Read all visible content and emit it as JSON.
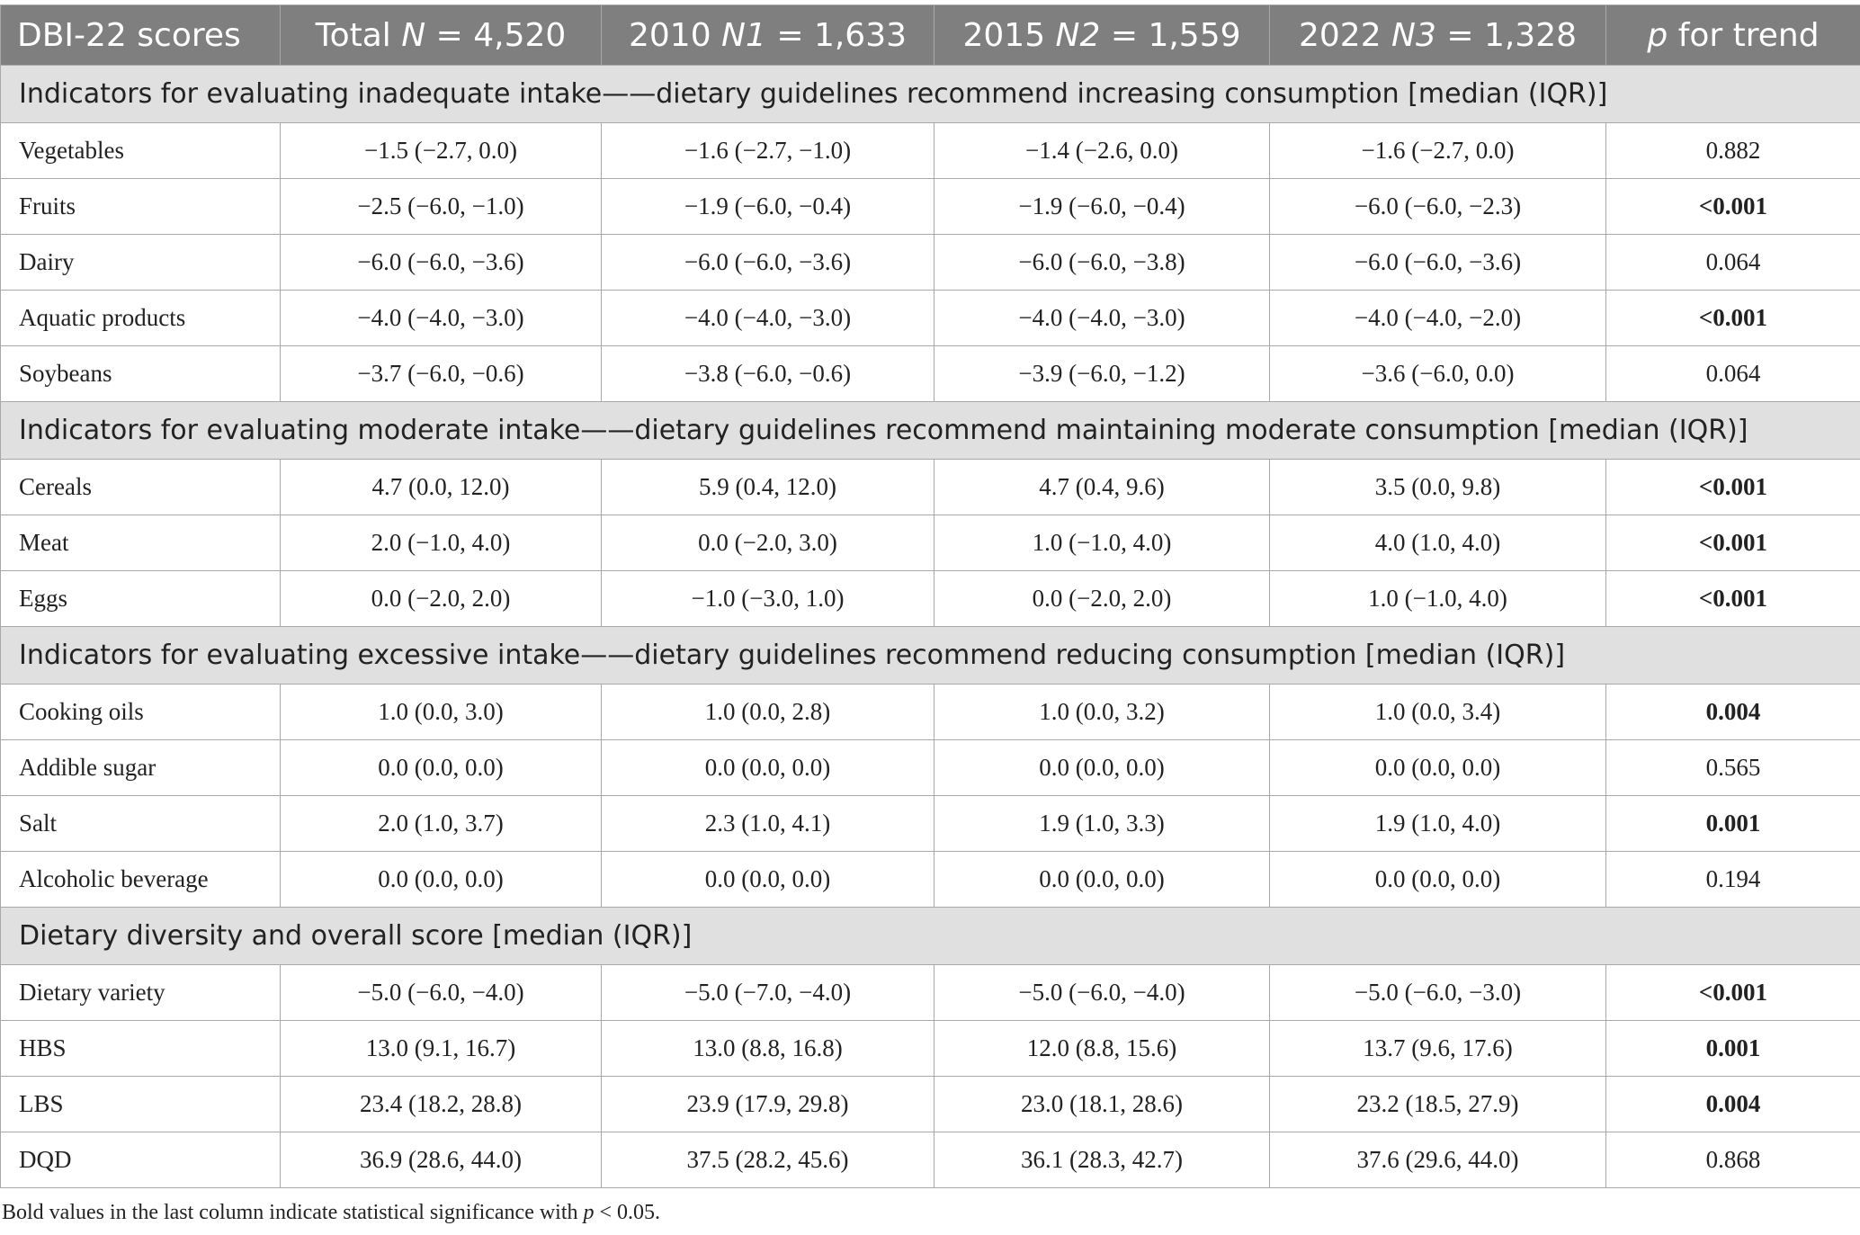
{
  "header": {
    "col0": "DBI-22 scores",
    "total_pre": "Total ",
    "total_var": "N",
    "total_post": " = 4,520",
    "y2010_pre": "2010 ",
    "y2010_var": "N1",
    "y2010_post": " = 1,633",
    "y2015_pre": "2015 ",
    "y2015_var": "N2",
    "y2015_post": " = 1,559",
    "y2022_pre": "2022 ",
    "y2022_var": "N3",
    "y2022_post": " = 1,328",
    "p_var": "p",
    "p_post": " for trend"
  },
  "sections": [
    {
      "title": "Indicators for evaluating inadequate intake——dietary guidelines recommend increasing consumption [median (IQR)]",
      "rows": [
        {
          "label": "Vegetables",
          "total": "−1.5 (−2.7, 0.0)",
          "y2010": "−1.6 (−2.7, −1.0)",
          "y2015": "−1.4 (−2.6, 0.0)",
          "y2022": "−1.6 (−2.7, 0.0)",
          "p": "0.882",
          "sig": false
        },
        {
          "label": "Fruits",
          "total": "−2.5 (−6.0, −1.0)",
          "y2010": "−1.9 (−6.0, −0.4)",
          "y2015": "−1.9 (−6.0, −0.4)",
          "y2022": "−6.0 (−6.0, −2.3)",
          "p": "<0.001",
          "sig": true
        },
        {
          "label": "Dairy",
          "total": "−6.0 (−6.0, −3.6)",
          "y2010": "−6.0 (−6.0, −3.6)",
          "y2015": "−6.0 (−6.0, −3.8)",
          "y2022": "−6.0 (−6.0, −3.6)",
          "p": "0.064",
          "sig": false
        },
        {
          "label": "Aquatic products",
          "total": "−4.0 (−4.0, −3.0)",
          "y2010": "−4.0 (−4.0, −3.0)",
          "y2015": "−4.0 (−4.0, −3.0)",
          "y2022": "−4.0 (−4.0, −2.0)",
          "p": "<0.001",
          "sig": true
        },
        {
          "label": "Soybeans",
          "total": "−3.7 (−6.0, −0.6)",
          "y2010": "−3.8 (−6.0, −0.6)",
          "y2015": "−3.9 (−6.0, −1.2)",
          "y2022": "−3.6 (−6.0, 0.0)",
          "p": "0.064",
          "sig": false
        }
      ]
    },
    {
      "title": "Indicators for evaluating moderate intake——dietary guidelines recommend maintaining moderate consumption [median (IQR)]",
      "rows": [
        {
          "label": "Cereals",
          "total": "4.7 (0.0, 12.0)",
          "y2010": "5.9 (0.4, 12.0)",
          "y2015": "4.7 (0.4, 9.6)",
          "y2022": "3.5 (0.0, 9.8)",
          "p": "<0.001",
          "sig": true
        },
        {
          "label": "Meat",
          "total": "2.0 (−1.0, 4.0)",
          "y2010": "0.0 (−2.0, 3.0)",
          "y2015": "1.0 (−1.0, 4.0)",
          "y2022": "4.0 (1.0, 4.0)",
          "p": "<0.001",
          "sig": true
        },
        {
          "label": "Eggs",
          "total": "0.0 (−2.0, 2.0)",
          "y2010": "−1.0 (−3.0, 1.0)",
          "y2015": "0.0 (−2.0, 2.0)",
          "y2022": "1.0 (−1.0, 4.0)",
          "p": "<0.001",
          "sig": true
        }
      ]
    },
    {
      "title": "Indicators for evaluating excessive intake——dietary guidelines recommend reducing consumption [median (IQR)]",
      "rows": [
        {
          "label": "Cooking oils",
          "total": "1.0 (0.0, 3.0)",
          "y2010": "1.0 (0.0, 2.8)",
          "y2015": "1.0 (0.0, 3.2)",
          "y2022": "1.0 (0.0, 3.4)",
          "p": "0.004",
          "sig": true
        },
        {
          "label": "Addible sugar",
          "total": "0.0 (0.0, 0.0)",
          "y2010": "0.0 (0.0, 0.0)",
          "y2015": "0.0 (0.0, 0.0)",
          "y2022": "0.0 (0.0, 0.0)",
          "p": "0.565",
          "sig": false
        },
        {
          "label": "Salt",
          "total": "2.0 (1.0, 3.7)",
          "y2010": "2.3 (1.0, 4.1)",
          "y2015": "1.9 (1.0, 3.3)",
          "y2022": "1.9 (1.0, 4.0)",
          "p": "0.001",
          "sig": true
        },
        {
          "label": "Alcoholic beverage",
          "total": "0.0 (0.0, 0.0)",
          "y2010": "0.0 (0.0, 0.0)",
          "y2015": "0.0 (0.0, 0.0)",
          "y2022": "0.0 (0.0, 0.0)",
          "p": "0.194",
          "sig": false
        }
      ]
    },
    {
      "title": "Dietary diversity and overall score [median (IQR)]",
      "rows": [
        {
          "label": "Dietary variety",
          "total": "−5.0 (−6.0, −4.0)",
          "y2010": "−5.0 (−7.0, −4.0)",
          "y2015": "−5.0 (−6.0, −4.0)",
          "y2022": "−5.0 (−6.0, −3.0)",
          "p": "<0.001",
          "sig": true
        },
        {
          "label": "HBS",
          "total": "13.0 (9.1, 16.7)",
          "y2010": "13.0 (8.8, 16.8)",
          "y2015": "12.0 (8.8, 15.6)",
          "y2022": "13.7 (9.6, 17.6)",
          "p": "0.001",
          "sig": true
        },
        {
          "label": "LBS",
          "total": "23.4 (18.2, 28.8)",
          "y2010": "23.9 (17.9, 29.8)",
          "y2015": "23.0 (18.1, 28.6)",
          "y2022": "23.2 (18.5, 27.9)",
          "p": "0.004",
          "sig": true
        },
        {
          "label": "DQD",
          "total": "36.9 (28.6, 44.0)",
          "y2010": "37.5 (28.2, 45.6)",
          "y2015": "36.1 (28.3, 42.7)",
          "y2022": "37.6 (29.6, 44.0)",
          "p": "0.868",
          "sig": false
        }
      ]
    }
  ],
  "footnote": {
    "pre": "Bold values in the last column indicate statistical significance with ",
    "var": "p",
    "post": " < 0.05."
  }
}
